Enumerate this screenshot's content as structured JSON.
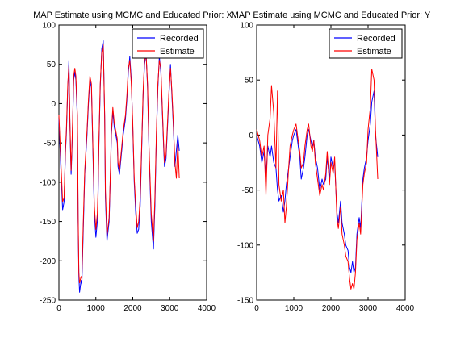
{
  "figure": {
    "background": "#ffffff"
  },
  "chart_data": [
    {
      "type": "line",
      "title": "MAP Estimate using MCMC and Educated Prior: X",
      "xlim": [
        0,
        4000
      ],
      "ylim": [
        -250,
        100
      ],
      "xticks": [
        0,
        1000,
        2000,
        3000,
        4000
      ],
      "yticks": [
        -250,
        -200,
        -150,
        -100,
        -50,
        0,
        50,
        100
      ],
      "legend_position": "top-right",
      "series": [
        {
          "name": "Recorded",
          "color": "#0000ff",
          "x": [
            0,
            60,
            100,
            140,
            180,
            200,
            240,
            270,
            300,
            330,
            350,
            380,
            400,
            430,
            460,
            500,
            520,
            540,
            560,
            600,
            620,
            660,
            700,
            760,
            800,
            840,
            880,
            920,
            960,
            1000,
            1040,
            1060,
            1080,
            1120,
            1160,
            1200,
            1240,
            1260,
            1300,
            1360,
            1400,
            1420,
            1460,
            1500,
            1540,
            1580,
            1600,
            1640,
            1700,
            1740,
            1800,
            1840,
            1880,
            1920,
            1960,
            2000,
            2040,
            2080,
            2120,
            2160,
            2200,
            2240,
            2280,
            2320,
            2360,
            2400,
            2440,
            2500,
            2560,
            2600,
            2640,
            2680,
            2720,
            2760,
            2800,
            2840,
            2860,
            2900,
            2940,
            2980,
            3020,
            3060,
            3100,
            3140,
            3180,
            3220,
            3260
          ],
          "y": [
            -20,
            -90,
            -135,
            -125,
            -60,
            -40,
            20,
            55,
            -30,
            -90,
            -65,
            -10,
            30,
            40,
            30,
            -20,
            -150,
            -220,
            -240,
            -225,
            -230,
            -160,
            -90,
            -40,
            0,
            30,
            20,
            -60,
            -140,
            -170,
            -150,
            -120,
            -60,
            20,
            70,
            80,
            -20,
            -120,
            -175,
            -150,
            -80,
            -40,
            -10,
            -30,
            -40,
            -50,
            -80,
            -90,
            -60,
            -40,
            -20,
            5,
            40,
            60,
            30,
            -30,
            -100,
            -140,
            -165,
            -160,
            -130,
            -60,
            10,
            50,
            65,
            20,
            -60,
            -150,
            -185,
            -130,
            -40,
            20,
            60,
            40,
            -10,
            -60,
            -80,
            -70,
            -30,
            10,
            50,
            10,
            -30,
            -80,
            -60,
            -40,
            -60
          ]
        },
        {
          "name": "Estimate",
          "color": "#ff0000",
          "x": [
            0,
            60,
            100,
            140,
            180,
            200,
            240,
            270,
            300,
            330,
            350,
            380,
            400,
            430,
            460,
            500,
            520,
            540,
            560,
            600,
            620,
            660,
            700,
            760,
            800,
            840,
            880,
            920,
            960,
            1000,
            1040,
            1060,
            1080,
            1120,
            1160,
            1200,
            1240,
            1260,
            1300,
            1360,
            1400,
            1420,
            1460,
            1500,
            1540,
            1580,
            1600,
            1640,
            1700,
            1740,
            1800,
            1840,
            1880,
            1920,
            1960,
            2000,
            2040,
            2080,
            2120,
            2160,
            2200,
            2240,
            2280,
            2320,
            2360,
            2400,
            2440,
            2500,
            2560,
            2600,
            2640,
            2680,
            2720,
            2760,
            2800,
            2840,
            2860,
            2900,
            2940,
            2980,
            3020,
            3060,
            3100,
            3140,
            3180,
            3220,
            3260
          ],
          "y": [
            -15,
            -80,
            -125,
            -120,
            -55,
            -35,
            25,
            48,
            -25,
            -85,
            -60,
            -5,
            35,
            45,
            35,
            -15,
            -140,
            -215,
            -228,
            -220,
            -222,
            -150,
            -85,
            -35,
            5,
            35,
            25,
            -55,
            -130,
            -160,
            -140,
            -110,
            -55,
            25,
            65,
            75,
            -15,
            -110,
            -168,
            -145,
            -75,
            -35,
            -5,
            -25,
            -35,
            -45,
            -75,
            -85,
            -55,
            -35,
            -15,
            10,
            45,
            55,
            25,
            -25,
            -95,
            -130,
            -158,
            -150,
            -120,
            -55,
            15,
            55,
            62,
            25,
            -55,
            -140,
            -175,
            -120,
            -35,
            25,
            55,
            45,
            -5,
            -55,
            -75,
            -65,
            -25,
            15,
            45,
            15,
            -25,
            -75,
            -95,
            -50,
            -95
          ]
        }
      ]
    },
    {
      "type": "line",
      "title": "MAP Estimate using MCMC and Educated Prior: Y",
      "xlim": [
        0,
        4000
      ],
      "ylim": [
        -150,
        100
      ],
      "xticks": [
        0,
        1000,
        2000,
        3000,
        4000
      ],
      "yticks": [
        -150,
        -100,
        -50,
        0,
        50,
        100
      ],
      "legend_position": "top-right",
      "series": [
        {
          "name": "Recorded",
          "color": "#0000ff",
          "x": [
            0,
            80,
            140,
            200,
            250,
            300,
            360,
            400,
            460,
            520,
            560,
            600,
            660,
            720,
            760,
            800,
            860,
            900,
            960,
            1000,
            1060,
            1120,
            1160,
            1200,
            1260,
            1300,
            1360,
            1400,
            1460,
            1500,
            1540,
            1580,
            1640,
            1700,
            1760,
            1800,
            1860,
            1900,
            1960,
            2000,
            2060,
            2100,
            2160,
            2200,
            2260,
            2300,
            2360,
            2400,
            2460,
            2500,
            2540,
            2580,
            2620,
            2660,
            2700,
            2760,
            2800,
            2860,
            2900,
            2960,
            3000,
            3060,
            3100,
            3160,
            3200,
            3260
          ],
          "y": [
            0,
            -10,
            -25,
            -15,
            -40,
            -10,
            -20,
            -10,
            -25,
            -30,
            -50,
            -60,
            -55,
            -70,
            -60,
            -45,
            -30,
            -20,
            -5,
            0,
            5,
            -10,
            -20,
            -40,
            -30,
            -20,
            0,
            5,
            -5,
            -10,
            -5,
            -20,
            -30,
            -50,
            -40,
            -45,
            -40,
            -20,
            -40,
            -20,
            -30,
            -25,
            -70,
            -80,
            -60,
            -80,
            -90,
            -100,
            -105,
            -120,
            -125,
            -115,
            -125,
            -120,
            -90,
            -75,
            -85,
            -40,
            -30,
            -20,
            -5,
            10,
            30,
            40,
            0,
            -20
          ]
        },
        {
          "name": "Estimate",
          "color": "#ff0000",
          "x": [
            0,
            80,
            140,
            200,
            250,
            300,
            360,
            400,
            460,
            520,
            560,
            600,
            660,
            720,
            760,
            800,
            860,
            900,
            960,
            1000,
            1060,
            1120,
            1160,
            1200,
            1260,
            1300,
            1360,
            1400,
            1460,
            1500,
            1540,
            1580,
            1640,
            1700,
            1760,
            1800,
            1860,
            1900,
            1960,
            2000,
            2060,
            2100,
            2160,
            2200,
            2260,
            2300,
            2360,
            2400,
            2460,
            2500,
            2540,
            2580,
            2620,
            2660,
            2700,
            2760,
            2800,
            2860,
            2900,
            2960,
            3000,
            3060,
            3100,
            3160,
            3200,
            3260
          ],
          "y": [
            5,
            -5,
            -20,
            -10,
            -55,
            0,
            15,
            45,
            20,
            -30,
            40,
            -45,
            -60,
            -50,
            -80,
            -65,
            -30,
            -10,
            0,
            5,
            10,
            -5,
            -15,
            -30,
            -25,
            -10,
            5,
            10,
            -10,
            -15,
            -5,
            -25,
            -40,
            -55,
            -45,
            -50,
            -35,
            -15,
            -45,
            -25,
            -35,
            -20,
            -75,
            -85,
            -65,
            -90,
            -100,
            -110,
            -115,
            -130,
            -140,
            -135,
            -140,
            -125,
            -95,
            -80,
            -90,
            -45,
            -35,
            -25,
            5,
            25,
            60,
            50,
            5,
            -40
          ]
        }
      ]
    }
  ]
}
